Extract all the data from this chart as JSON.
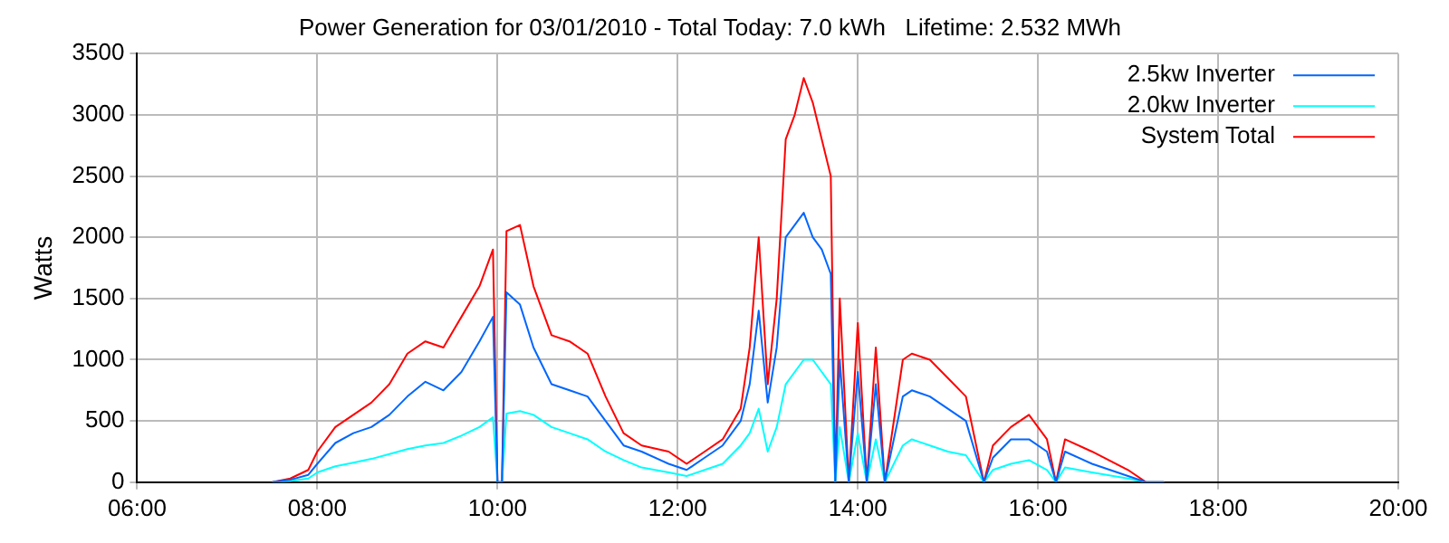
{
  "chart_data": {
    "type": "line",
    "title": "Power Generation for 03/01/2010 - Total Today: 7.0 kWh   Lifetime: 2.532 MWh",
    "ylabel": "Watts",
    "x": [
      7.5,
      7.7,
      7.9,
      8.0,
      8.2,
      8.4,
      8.6,
      8.8,
      9.0,
      9.2,
      9.4,
      9.6,
      9.8,
      9.95,
      10.0,
      10.05,
      10.1,
      10.25,
      10.4,
      10.6,
      10.8,
      11.0,
      11.2,
      11.4,
      11.6,
      11.9,
      12.1,
      12.3,
      12.5,
      12.7,
      12.8,
      12.9,
      13.0,
      13.1,
      13.2,
      13.3,
      13.4,
      13.5,
      13.6,
      13.7,
      13.75,
      13.8,
      13.9,
      14.0,
      14.1,
      14.2,
      14.3,
      14.5,
      14.6,
      14.8,
      15.0,
      15.2,
      15.4,
      15.5,
      15.7,
      15.9,
      16.1,
      16.2,
      16.3,
      16.6,
      17.0,
      17.2,
      17.4
    ],
    "series": [
      {
        "name": "2.5kw Inverter",
        "color": "#0066ff",
        "values": [
          0,
          20,
          60,
          150,
          320,
          400,
          450,
          550,
          700,
          820,
          750,
          900,
          1150,
          1350,
          0,
          0,
          1550,
          1450,
          1100,
          800,
          750,
          700,
          500,
          300,
          250,
          150,
          100,
          200,
          300,
          500,
          800,
          1400,
          650,
          1100,
          2000,
          2100,
          2200,
          2000,
          1900,
          1700,
          0,
          1000,
          0,
          900,
          0,
          800,
          0,
          700,
          750,
          700,
          600,
          500,
          0,
          200,
          350,
          350,
          250,
          0,
          250,
          150,
          50,
          0,
          0
        ]
      },
      {
        "name": "2.0kw Inverter",
        "color": "#00ffff",
        "values": [
          0,
          10,
          30,
          80,
          130,
          160,
          190,
          230,
          270,
          300,
          320,
          380,
          450,
          530,
          0,
          0,
          560,
          580,
          550,
          450,
          400,
          350,
          250,
          180,
          120,
          80,
          50,
          100,
          150,
          300,
          400,
          600,
          250,
          450,
          800,
          900,
          1000,
          1000,
          900,
          800,
          0,
          450,
          0,
          400,
          0,
          350,
          0,
          300,
          350,
          300,
          250,
          220,
          0,
          100,
          150,
          180,
          100,
          0,
          120,
          80,
          30,
          0,
          0
        ]
      },
      {
        "name": "System Total",
        "color": "#ff0000",
        "values": [
          0,
          30,
          100,
          250,
          450,
          550,
          650,
          800,
          1050,
          1150,
          1100,
          1350,
          1600,
          1900,
          0,
          0,
          2050,
          2100,
          1600,
          1200,
          1150,
          1050,
          700,
          400,
          300,
          250,
          150,
          250,
          350,
          600,
          1100,
          2000,
          800,
          1500,
          2800,
          3000,
          3300,
          3100,
          2800,
          2500,
          0,
          1500,
          0,
          1300,
          0,
          1100,
          0,
          1000,
          1050,
          1000,
          850,
          700,
          0,
          300,
          450,
          550,
          350,
          0,
          350,
          250,
          100,
          0,
          0
        ]
      }
    ],
    "xlim": [
      6,
      20
    ],
    "xticks": [
      {
        "value": 6,
        "label": "06:00"
      },
      {
        "value": 8,
        "label": "08:00"
      },
      {
        "value": 10,
        "label": "10:00"
      },
      {
        "value": 12,
        "label": "12:00"
      },
      {
        "value": 14,
        "label": "14:00"
      },
      {
        "value": 16,
        "label": "16:00"
      },
      {
        "value": 18,
        "label": "18:00"
      },
      {
        "value": 20,
        "label": "20:00"
      }
    ],
    "ylim": [
      0,
      3500
    ],
    "yticks": [
      0,
      500,
      1000,
      1500,
      2000,
      2500,
      3000,
      3500
    ],
    "grid": true,
    "legend": "top right"
  }
}
